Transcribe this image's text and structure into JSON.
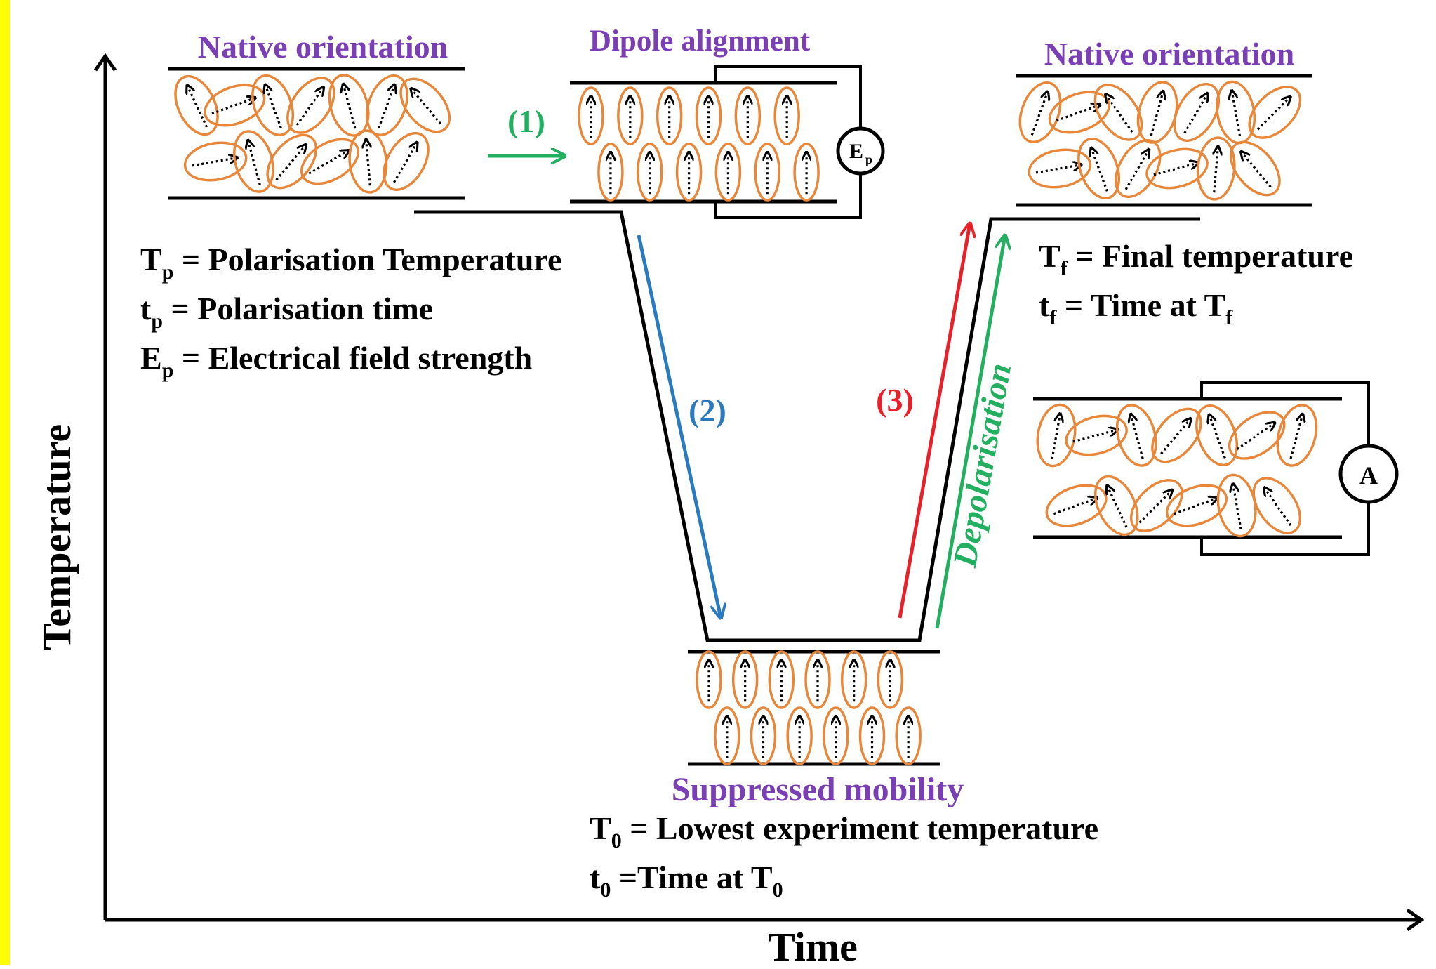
{
  "colors": {
    "border": "#ffff00",
    "purple": "#7a3fb4",
    "green": "#22b060",
    "blue": "#2a7ac0",
    "red": "#e8202a",
    "orange": "#e8873a",
    "black": "#000000"
  },
  "axes": {
    "x_label": "Time",
    "y_label": "Temperature"
  },
  "panels": {
    "top_left_title": "Native orientation",
    "dipole_title": "Dipole alignment",
    "top_right_title": "Native orientation",
    "bottom_title": "Suppressed mobility"
  },
  "steps": {
    "step1": "(1)",
    "step2": "(2)",
    "step3": "(3)",
    "depolarisation": "Depolarisation"
  },
  "meters": {
    "field_source": "E",
    "field_source_sub": "p",
    "ammeter": "A"
  },
  "definitions": {
    "tp_sym": "T",
    "tp_sub": "p",
    "tp_text": " = Polarisation Temperature",
    "tp2_sym": "t",
    "tp2_sub": "p",
    "tp2_text": " = Polarisation time",
    "ep_sym": "E",
    "ep_sub": "p",
    "ep_text": " = Electrical field strength",
    "tf_sym": "T",
    "tf_sub": "f",
    "tf_text": " = Final temperature",
    "tf2_sym": "t",
    "tf2_sub": "f",
    "tf2_text": " = Time at T",
    "tf2_sub2": "f",
    "t0_sym": "T",
    "t0_sub": "0",
    "t0_text": " = Lowest experiment temperature",
    "t02_sym": "t",
    "t02_sub": "0",
    "t02_text": " =Time at T",
    "t02_sub2": "0"
  }
}
